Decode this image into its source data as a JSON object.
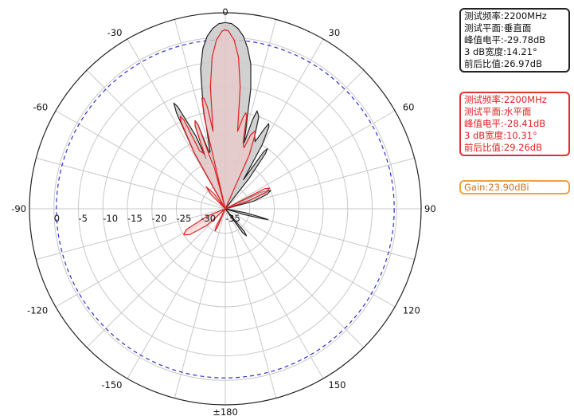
{
  "chart_data": {
    "type": "polar",
    "angle_labels": [
      {
        "deg": 0,
        "text": "0"
      },
      {
        "deg": 30,
        "text": "30"
      },
      {
        "deg": 60,
        "text": "60"
      },
      {
        "deg": 90,
        "text": "90"
      },
      {
        "deg": 120,
        "text": "120"
      },
      {
        "deg": 150,
        "text": "150"
      },
      {
        "deg": 180,
        "text": "±180"
      },
      {
        "deg": -150,
        "text": "-150"
      },
      {
        "deg": -120,
        "text": "-120"
      },
      {
        "deg": -90,
        "text": "-90"
      },
      {
        "deg": -60,
        "text": "-60"
      },
      {
        "deg": -30,
        "text": "-30"
      }
    ],
    "radial_ticks": [
      "0",
      "-5",
      "-10",
      "-15",
      "-20",
      "-25",
      "-30",
      "-35"
    ],
    "radial_range_db": [
      -35,
      5
    ],
    "reference_level_db": -0.5,
    "grid": true,
    "series": [
      {
        "color": "#222222",
        "fill": "#c9c9c9",
        "points": [
          [
            -30,
            -35
          ],
          [
            -29,
            -22
          ],
          [
            -27,
            -13
          ],
          [
            -26,
            -11
          ],
          [
            -25,
            -12
          ],
          [
            -22,
            -19
          ],
          [
            -21,
            -24
          ],
          [
            -20,
            -17
          ],
          [
            -19,
            -16
          ],
          [
            -18,
            -17
          ],
          [
            -16,
            -23
          ],
          [
            -15,
            -23
          ],
          [
            -12,
            -13
          ],
          [
            -10,
            -6
          ],
          [
            -8,
            -2
          ],
          [
            -6,
            0.4
          ],
          [
            -4,
            1.9
          ],
          [
            -2,
            2.8
          ],
          [
            0,
            3.0
          ],
          [
            2,
            2.8
          ],
          [
            4,
            1.9
          ],
          [
            6,
            0.4
          ],
          [
            8,
            -2
          ],
          [
            10,
            -5
          ],
          [
            12,
            -10
          ],
          [
            14,
            -17
          ],
          [
            16,
            -21
          ],
          [
            17,
            -16
          ],
          [
            18,
            -14
          ],
          [
            20,
            -15
          ],
          [
            22,
            -19
          ],
          [
            24,
            -20
          ],
          [
            26,
            -17
          ],
          [
            27,
            -15.5
          ],
          [
            28,
            -16
          ],
          [
            30,
            -20
          ],
          [
            32,
            -28
          ],
          [
            34,
            -21
          ],
          [
            35,
            -20
          ],
          [
            36,
            -21
          ],
          [
            38,
            -27
          ],
          [
            40,
            -35
          ],
          [
            60,
            -35
          ],
          [
            65,
            -27
          ],
          [
            68,
            -25
          ],
          [
            71,
            -26
          ],
          [
            75,
            -29
          ],
          [
            80,
            -35
          ],
          [
            100,
            -35
          ],
          [
            101,
            -31
          ],
          [
            103,
            -28
          ],
          [
            104,
            -26
          ],
          [
            105,
            -27
          ],
          [
            107,
            -31
          ],
          [
            110,
            -35
          ],
          [
            130,
            -35
          ],
          [
            140,
            -29
          ],
          [
            142,
            -28
          ],
          [
            144,
            -29
          ],
          [
            148,
            -35
          ],
          [
            330,
            -35
          ]
        ]
      },
      {
        "color": "#e02020",
        "fill": "#f4c8c8",
        "points": [
          [
            -30,
            -35
          ],
          [
            -29,
            -22
          ],
          [
            -27,
            -15
          ],
          [
            -26,
            -14
          ],
          [
            -25,
            -15
          ],
          [
            -24,
            -22
          ],
          [
            -21,
            -23
          ],
          [
            -20,
            -17
          ],
          [
            -19,
            -16
          ],
          [
            -18,
            -17
          ],
          [
            -16,
            -25
          ],
          [
            -15,
            -26
          ],
          [
            -14,
            -35
          ],
          [
            -13,
            -16
          ],
          [
            -12,
            -12
          ],
          [
            -11,
            -12
          ],
          [
            -10,
            -14
          ],
          [
            -9,
            -19
          ],
          [
            -7,
            -10
          ],
          [
            -5,
            -4
          ],
          [
            -3,
            -0.5
          ],
          [
            -1,
            1.3
          ],
          [
            0,
            1.5
          ],
          [
            1,
            1.3
          ],
          [
            3,
            -0.5
          ],
          [
            5,
            -4
          ],
          [
            7,
            -10
          ],
          [
            9,
            -19
          ],
          [
            11,
            -16
          ],
          [
            12,
            -15
          ],
          [
            13,
            -15.5
          ],
          [
            15,
            -21
          ],
          [
            17,
            -22
          ],
          [
            19,
            -19
          ],
          [
            21,
            -18
          ],
          [
            22,
            -19
          ],
          [
            24,
            -23
          ],
          [
            26,
            -35
          ],
          [
            60,
            -35
          ],
          [
            63,
            -26
          ],
          [
            65,
            -25
          ],
          [
            68,
            -26
          ],
          [
            71,
            -30
          ],
          [
            75,
            -35
          ],
          [
            200,
            -35
          ],
          [
            203,
            -31
          ],
          [
            205,
            -30
          ],
          [
            207,
            -31
          ],
          [
            210,
            -35
          ],
          [
            220,
            -35
          ],
          [
            228,
            -30
          ],
          [
            234,
            -26
          ],
          [
            238,
            -25
          ],
          [
            242,
            -26
          ],
          [
            248,
            -31
          ],
          [
            255,
            -35
          ],
          [
            310,
            -35
          ],
          [
            315,
            -31
          ],
          [
            319,
            -29
          ],
          [
            323,
            -31
          ],
          [
            330,
            -35
          ]
        ]
      }
    ]
  },
  "legend_vertical": {
    "lines": [
      "测试频率:2200MHz",
      "测试平面:垂直面",
      "峰值电平:-29.78dB",
      "3 dB宽度:14.21°",
      "前后比值:26.97dB"
    ],
    "color": "#222222"
  },
  "legend_horizontal": {
    "lines": [
      "测试频率:2200MHz",
      "测试平面:水平面",
      "峰值电平:-28.41dB",
      "3 dB宽度:10.31°",
      "前后比值:29.26dB"
    ],
    "color": "#e02020"
  },
  "gain_label": "Gain:23.90dBi",
  "colors": {
    "grid": "#c8c8c8",
    "outer_ring": "#222222",
    "reference_ring": "#3030c8",
    "gain": "#f0a040"
  }
}
